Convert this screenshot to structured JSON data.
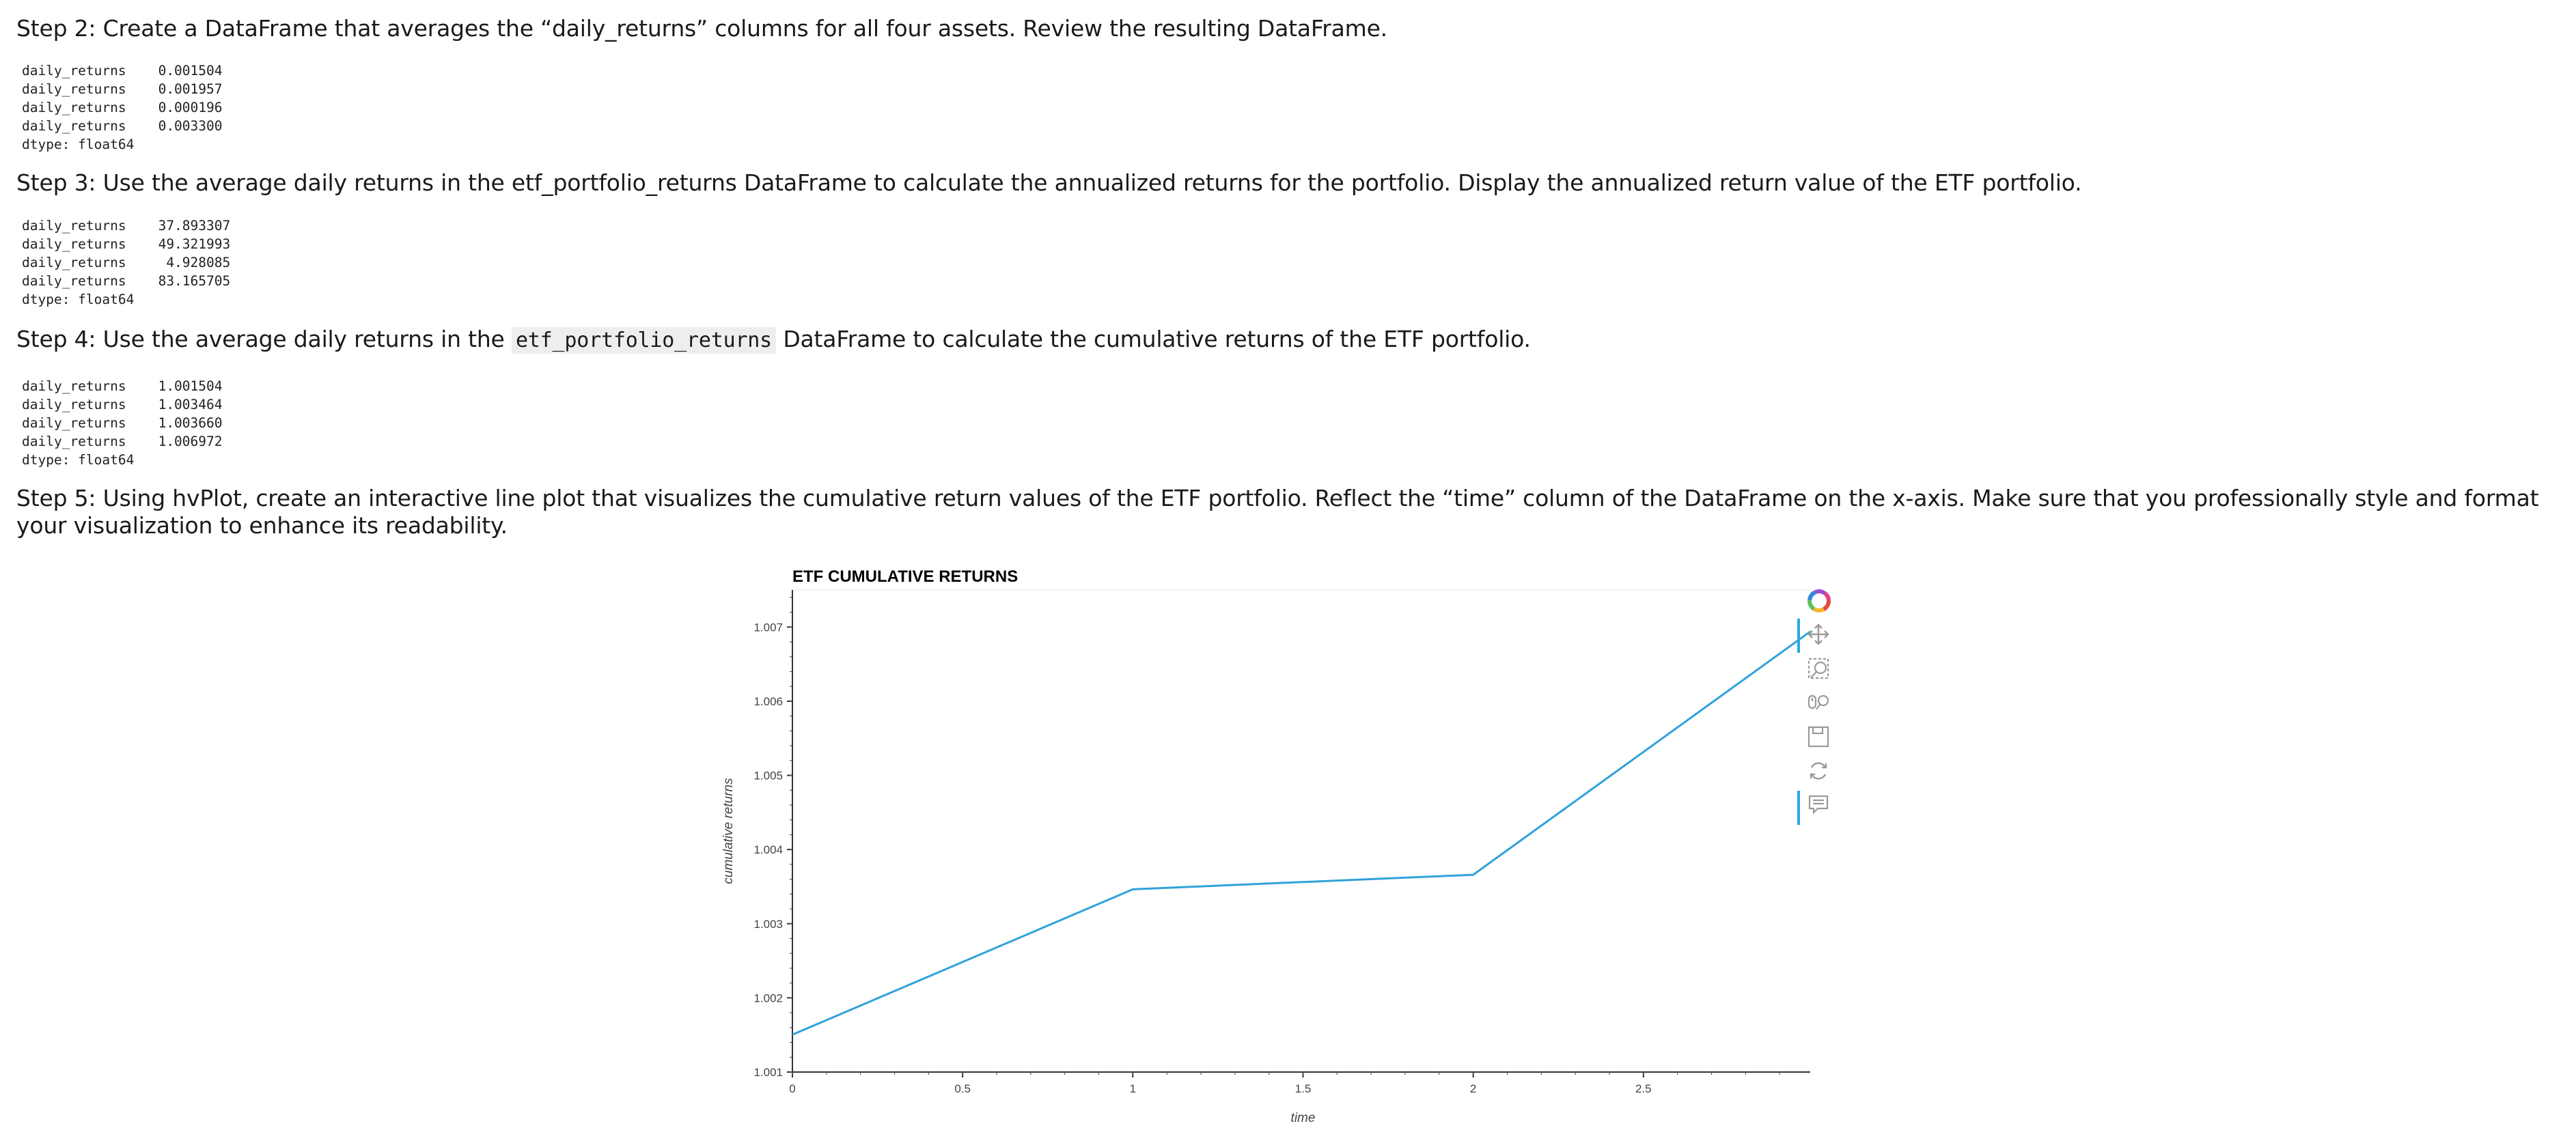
{
  "steps": {
    "step2": {
      "text": "Step 2: Create a DataFrame that averages the “daily_returns” columns for all four assets. Review the resulting DataFrame.",
      "output": "daily_returns    0.001504\ndaily_returns    0.001957\ndaily_returns    0.000196\ndaily_returns    0.003300\ndtype: float64"
    },
    "step3": {
      "text": "Step 3: Use the average daily returns in the etf_portfolio_returns DataFrame to calculate the annualized returns for the portfolio. Display the annualized return value of the ETF portfolio.",
      "output": "daily_returns    37.893307\ndaily_returns    49.321993\ndaily_returns     4.928085\ndaily_returns    83.165705\ndtype: float64"
    },
    "step4": {
      "text_before": "Step 4: Use the average daily returns in the ",
      "code": "etf_portfolio_returns",
      "text_after": " DataFrame to calculate the cumulative returns of the ETF portfolio.",
      "output": "daily_returns    1.001504\ndaily_returns    1.003464\ndaily_returns    1.003660\ndaily_returns    1.006972\ndtype: float64"
    },
    "step5": {
      "text": "Step 5: Using hvPlot, create an interactive line plot that visualizes the cumulative return values of the ETF portfolio. Reflect the “time” column of the DataFrame on the x-axis. Make sure that you professionally style and format your visualization to enhance its readability."
    }
  },
  "toolbar": {
    "tools": [
      {
        "name": "bokeh-logo-icon"
      },
      {
        "name": "pan-icon"
      },
      {
        "name": "box-zoom-icon"
      },
      {
        "name": "wheel-zoom-icon"
      },
      {
        "name": "save-icon"
      },
      {
        "name": "reset-icon"
      },
      {
        "name": "hover-icon"
      }
    ]
  },
  "chart_data": {
    "type": "line",
    "title": "ETF CUMULATIVE RETURNS",
    "xlabel": "time",
    "ylabel": "cumulative returns",
    "x": [
      0,
      1,
      2,
      3
    ],
    "values": [
      1.001504,
      1.003464,
      1.00366,
      1.006972
    ],
    "xlim": [
      0,
      3
    ],
    "ylim": [
      1.001,
      1.0075
    ],
    "x_ticks": [
      "0",
      "0.5",
      "1",
      "1.5",
      "2",
      "2.5",
      "3"
    ],
    "y_ticks": [
      "1.001",
      "1.002",
      "1.003",
      "1.004",
      "1.005",
      "1.006",
      "1.007"
    ],
    "line_color": "#30a2da",
    "grid": false
  }
}
